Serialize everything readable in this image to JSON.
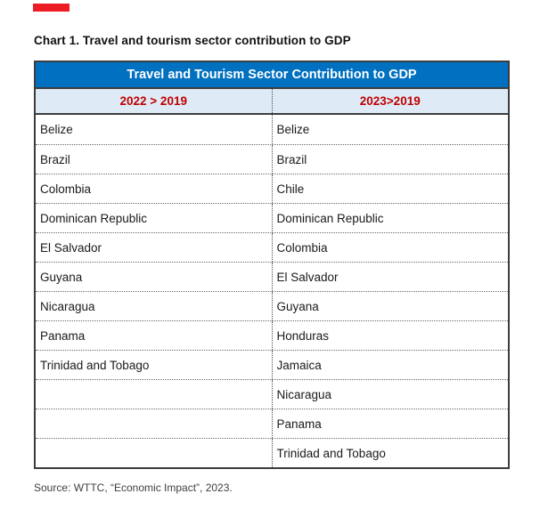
{
  "page": {
    "background": "#ffffff"
  },
  "decorations": {
    "top_red_bar_color": "#ed1c24"
  },
  "chart_title": "Chart 1. Travel and tourism sector contribution to GDP",
  "table": {
    "header": "Travel and Tourism Sector Contribution to GDP",
    "header_bg": "#0070c0",
    "header_text_color": "#ffffff",
    "subheader_bg": "#deeaf6",
    "subheader_text_color": "#c00000",
    "columns": [
      {
        "label": "2022 > 2019",
        "rows": [
          "Belize",
          "Brazil",
          "Colombia",
          "Dominican Republic",
          "El Salvador",
          "Guyana",
          "Nicaragua",
          "Panama",
          "Trinidad and Tobago",
          "",
          "",
          ""
        ]
      },
      {
        "label": "2023>2019",
        "rows": [
          "Belize",
          "Brazil",
          "Chile",
          "Dominican Republic",
          "Colombia",
          "El Salvador",
          "Guyana",
          "Honduras",
          "Jamaica",
          "Nicaragua",
          "Panama",
          "Trinidad and Tobago"
        ]
      }
    ]
  },
  "source": "Source: WTTC, “Economic Impact”, 2023."
}
